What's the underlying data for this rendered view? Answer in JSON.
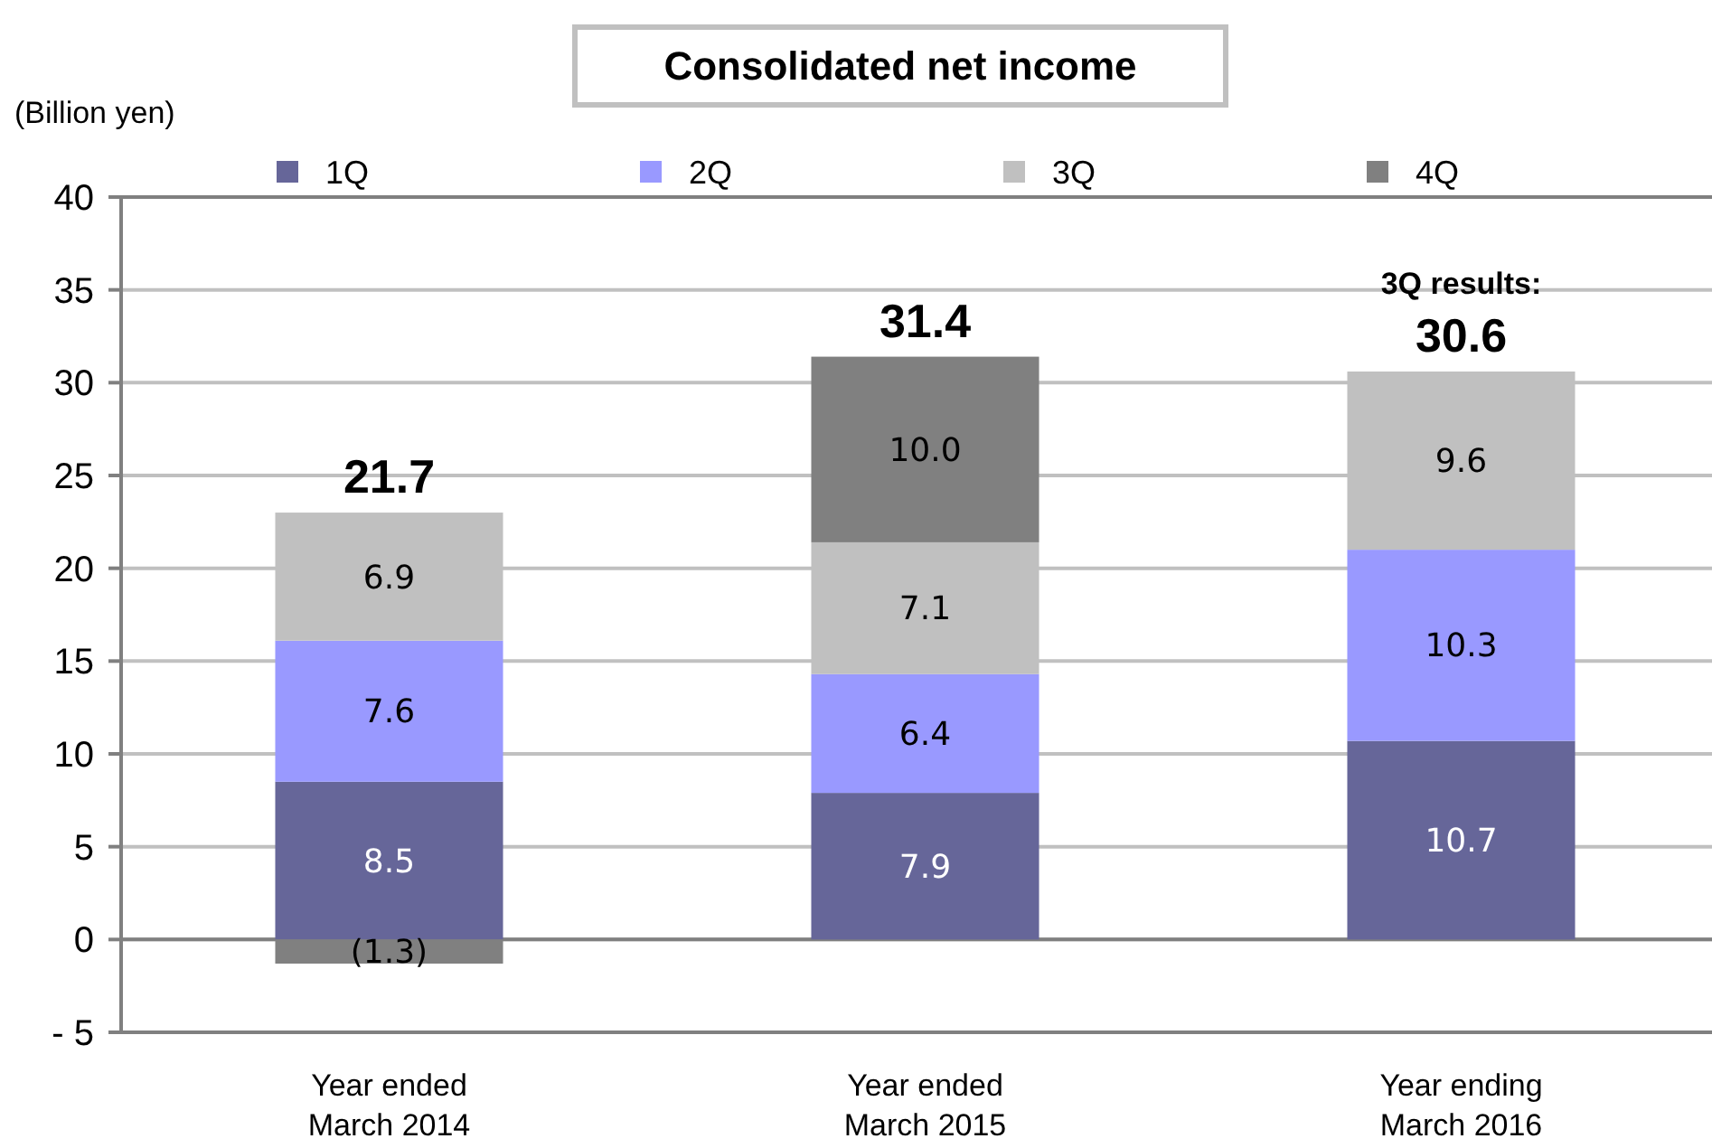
{
  "chart_data": {
    "type": "bar",
    "title": "Consolidated net income",
    "ylabel": "(Billion yen)",
    "categories": [
      "Year ended\nMarch 2014",
      "Year ended\nMarch 2015",
      "Year ending\nMarch 2016"
    ],
    "series": [
      {
        "name": "1Q",
        "color": "#666699",
        "values": [
          8.5,
          7.9,
          10.7
        ],
        "value_labels": [
          "8.5",
          "7.9",
          "10.7"
        ]
      },
      {
        "name": "2Q",
        "color": "#9999ff",
        "values": [
          7.6,
          6.4,
          10.3
        ],
        "value_labels": [
          "7.6",
          "6.4",
          "10.3"
        ]
      },
      {
        "name": "3Q",
        "color": "#c0c0c0",
        "values": [
          6.9,
          7.1,
          9.6
        ],
        "value_labels": [
          "6.9",
          "7.1",
          "9.6"
        ]
      },
      {
        "name": "4Q",
        "color": "#808080",
        "values": [
          -1.3,
          10.0,
          null
        ],
        "value_labels": [
          "(1.3)",
          "10.0",
          null
        ]
      }
    ],
    "stacked": true,
    "ylim": [
      -5,
      40
    ],
    "yticks": [
      {
        "value": -5,
        "label": "- 5"
      },
      0,
      5,
      10,
      15,
      20,
      25,
      30,
      35,
      40
    ],
    "grid": "y",
    "legend": "top",
    "totals": [
      "21.7",
      "31.4",
      "30.6"
    ],
    "annotations": [
      {
        "text": "3Q results:",
        "x": "Year ending\nMarch 2016",
        "y": 30.6
      }
    ]
  }
}
